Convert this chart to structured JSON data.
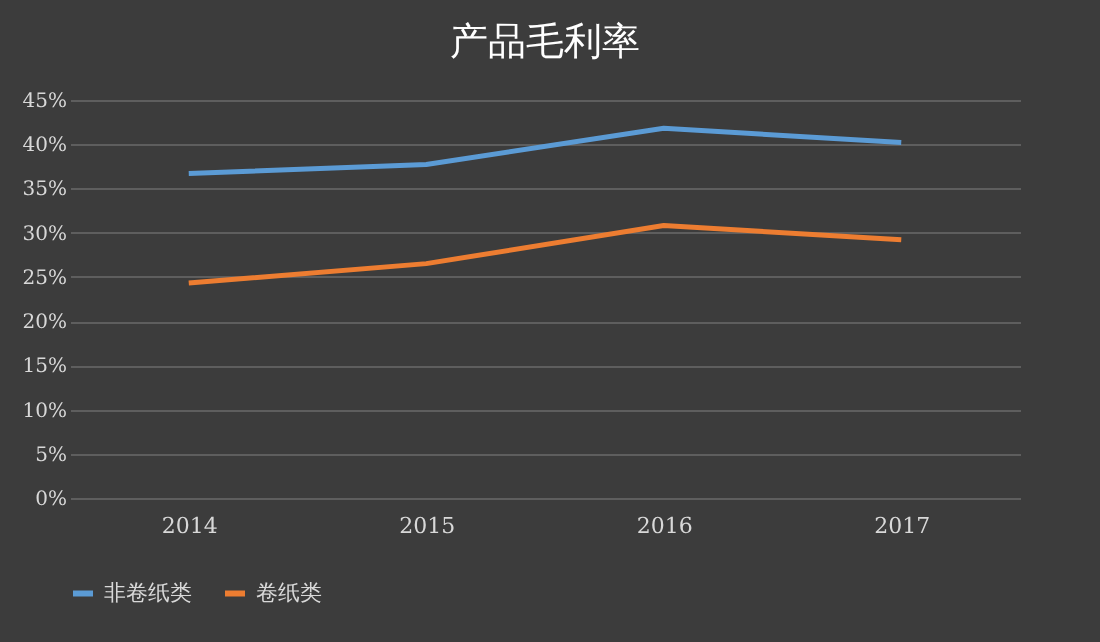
{
  "chart_data": {
    "type": "line",
    "title": "产品毛利率",
    "categories": [
      "2014",
      "2015",
      "2016",
      "2017"
    ],
    "series": [
      {
        "name": "非卷纸类",
        "color": "#5b9bd5",
        "values": [
          36.7,
          37.7,
          41.8,
          40.2
        ]
      },
      {
        "name": "卷纸类",
        "color": "#ed7d31",
        "values": [
          24.3,
          26.5,
          30.8,
          29.2
        ]
      }
    ],
    "ylim": [
      0,
      45
    ],
    "yticks": [
      {
        "value": 0,
        "label": "0%"
      },
      {
        "value": 5,
        "label": "5%"
      },
      {
        "value": 10,
        "label": "10%"
      },
      {
        "value": 15,
        "label": "15%"
      },
      {
        "value": 20,
        "label": "20%"
      },
      {
        "value": 25,
        "label": "25%"
      },
      {
        "value": 30,
        "label": "30%"
      },
      {
        "value": 35,
        "label": "35%"
      },
      {
        "value": 40,
        "label": "40%"
      },
      {
        "value": 45,
        "label": "45%"
      }
    ],
    "grid": "y",
    "legend": "bottom",
    "marker": "none",
    "line_style": "solid"
  }
}
